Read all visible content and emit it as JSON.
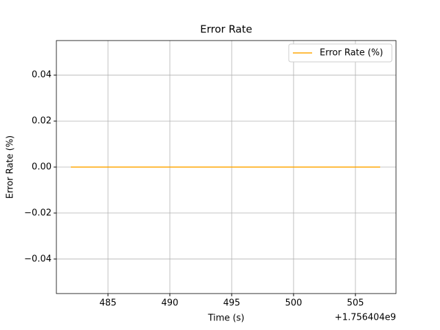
{
  "chart_data": {
    "type": "line",
    "title": "Error Rate",
    "x_label": "Time (s)",
    "y_label": "Error Rate (%)",
    "x_offset_label": "+1.756404e9",
    "x": [
      482,
      483,
      484,
      485,
      486,
      487,
      488,
      489,
      490,
      491,
      492,
      493,
      494,
      495,
      496,
      497,
      498,
      499,
      500,
      501,
      502,
      503,
      504,
      505,
      506,
      507
    ],
    "series": [
      {
        "name": "Error Rate (%)",
        "color": "#ffa500",
        "values": [
          0,
          0,
          0,
          0,
          0,
          0,
          0,
          0,
          0,
          0,
          0,
          0,
          0,
          0,
          0,
          0,
          0,
          0,
          0,
          0,
          0,
          0,
          0,
          0,
          0,
          0
        ]
      }
    ],
    "xlim": [
      480.83,
      508.28
    ],
    "xticks": [
      485,
      490,
      495,
      500,
      505
    ],
    "ylim": [
      -0.055,
      0.055
    ],
    "yticks": [
      {
        "value": -0.04,
        "label": "−0.04"
      },
      {
        "value": -0.02,
        "label": "−0.02"
      },
      {
        "value": 0,
        "label": "0.00"
      },
      0.02,
      0.04
    ],
    "grid": true,
    "legend": "upper right"
  }
}
